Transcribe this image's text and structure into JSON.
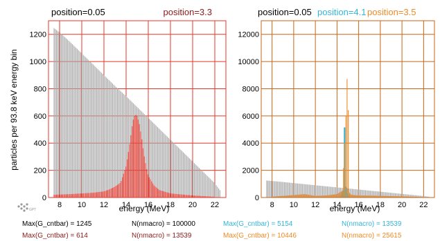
{
  "ylabel": "particles per 93.8 keV energy bin",
  "chart_data": [
    {
      "type": "bar",
      "panel": "left",
      "header": [
        {
          "text": "position=0.05",
          "color": "#000000"
        },
        {
          "text": "position=3.3",
          "color": "#8b1a1a"
        }
      ],
      "xlabel": "energy (MeV)",
      "xlim": [
        7.0,
        23.0
      ],
      "ylim": [
        0,
        1300
      ],
      "xticks": [
        8,
        10,
        12,
        14,
        16,
        18,
        20,
        22
      ],
      "yticks": [
        0,
        200,
        400,
        600,
        800,
        1000,
        1200
      ],
      "grid": true,
      "grid_color": "#e8352a",
      "series": [
        {
          "color": "#a9a9a9",
          "x": [
            7.5,
            8.0,
            9.0,
            10.0,
            11.0,
            12.0,
            13.0,
            14.0,
            15.0,
            16.0,
            17.0,
            18.0,
            19.0,
            20.0,
            21.0,
            22.0,
            22.5
          ],
          "values": [
            1245,
            1215,
            1140,
            1060,
            980,
            900,
            820,
            745,
            665,
            585,
            505,
            425,
            345,
            265,
            185,
            105,
            50
          ]
        },
        {
          "color": "#e8352a",
          "x": [
            7.5,
            9.0,
            10.0,
            11.0,
            12.0,
            12.5,
            13.0,
            13.5,
            14.0,
            14.3,
            14.6,
            14.8,
            15.0,
            15.2,
            15.4,
            15.6,
            15.8,
            16.0,
            16.5,
            17.0,
            18.0,
            20.0,
            22.0
          ],
          "values": [
            20,
            25,
            30,
            35,
            45,
            60,
            80,
            110,
            230,
            380,
            560,
            610,
            600,
            540,
            440,
            320,
            230,
            160,
            90,
            55,
            30,
            15,
            5
          ]
        }
      ],
      "stats": [
        {
          "text": "Max(G_cntbar) = 1245",
          "color": "#000000"
        },
        {
          "text": "N(nmacro) = 100000",
          "color": "#000000"
        },
        {
          "text": "Max(G_cntbar) = 614",
          "color": "#8b1a1a"
        },
        {
          "text": "N(nmacro) = 13539",
          "color": "#8b1a1a"
        }
      ]
    },
    {
      "type": "bar",
      "panel": "right",
      "header": [
        {
          "text": "position=0.05",
          "color": "#000000"
        },
        {
          "text": "position=4.1",
          "color": "#33b5d9"
        },
        {
          "text": "position=3.5",
          "color": "#f08a24"
        }
      ],
      "xlabel": "energy (MeV)",
      "xlim": [
        7.0,
        23.0
      ],
      "ylim": [
        0,
        13000
      ],
      "xticks": [
        8,
        10,
        12,
        14,
        16,
        18,
        20,
        22
      ],
      "yticks": [
        0,
        2000,
        4000,
        6000,
        8000,
        10000,
        12000
      ],
      "grid": true,
      "grid_color": "#c86414",
      "series": [
        {
          "color": "#a9a9a9",
          "x": [
            7.5,
            8.0,
            9.0,
            10.0,
            11.0,
            12.0,
            13.0,
            14.0,
            15.0,
            16.0,
            17.0,
            18.0,
            19.0,
            20.0,
            21.0,
            22.0,
            22.5
          ],
          "values": [
            1245,
            1215,
            1140,
            1060,
            980,
            900,
            820,
            745,
            665,
            585,
            505,
            425,
            345,
            265,
            185,
            105,
            50
          ]
        },
        {
          "color": "#33b5d9",
          "x": [
            14.4,
            14.6,
            14.7,
            14.8,
            14.9,
            15.0,
            15.1
          ],
          "values": [
            200,
            500,
            5154,
            800,
            700,
            300,
            150
          ]
        },
        {
          "color": "#f08a24",
          "x": [
            8.0,
            10.0,
            11.0,
            12.0,
            13.0,
            14.0,
            14.5,
            14.8,
            15.0,
            15.1,
            15.3,
            16.0,
            17.0,
            19.0,
            21.0,
            22.0
          ],
          "values": [
            60,
            180,
            250,
            120,
            150,
            250,
            500,
            5500,
            10446,
            400,
            200,
            150,
            140,
            100,
            60,
            30
          ]
        }
      ],
      "stats": [
        {
          "text": "Max(G_cntbar) = 5154",
          "color": "#33b5d9"
        },
        {
          "text": "N(nmacro) = 13539",
          "color": "#33b5d9"
        },
        {
          "text": "Max(G_cntbar) = 10446",
          "color": "#f08a24"
        },
        {
          "text": "N(nmacro) = 25615",
          "color": "#f08a24"
        }
      ]
    }
  ],
  "logo": {
    "text": "GPT"
  }
}
